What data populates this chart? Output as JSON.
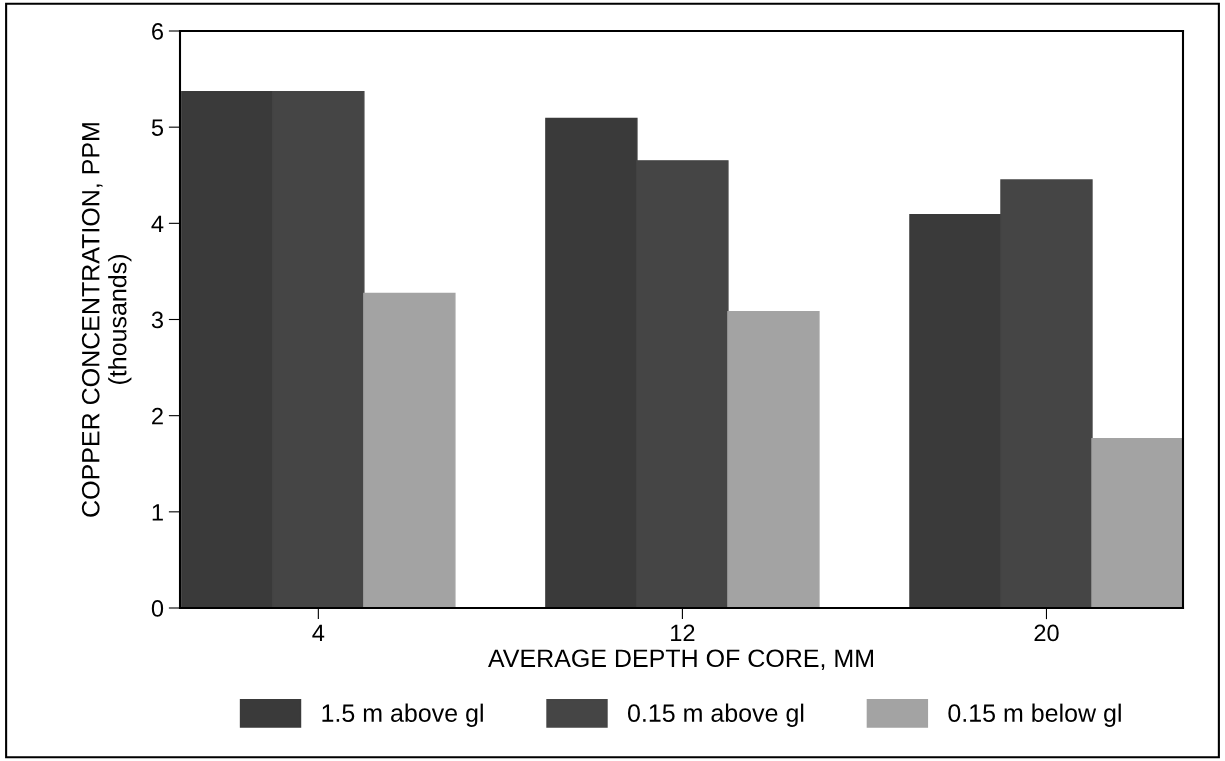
{
  "chart_data": {
    "type": "bar",
    "xlabel": "AVERAGE DEPTH OF CORE, MM",
    "ylabel": "COPPER CONCENTRATION, PPM\n(thousands)",
    "categories": [
      "4",
      "12",
      "20"
    ],
    "series": [
      {
        "name": "1.5 m above gl",
        "color": "#3a3a3a",
        "values": [
          5.37,
          5.09,
          4.09
        ]
      },
      {
        "name": "0.15 m above gl",
        "color": "#454545",
        "values": [
          5.37,
          4.65,
          4.45
        ]
      },
      {
        "name": "0.15 m below gl",
        "color": "#a3a3a3",
        "values": [
          3.27,
          3.08,
          1.76
        ]
      }
    ],
    "ylim": [
      0,
      6
    ],
    "yticks": [
      0,
      1,
      2,
      3,
      4,
      5,
      6
    ],
    "grid": false,
    "legend": "bottom"
  }
}
